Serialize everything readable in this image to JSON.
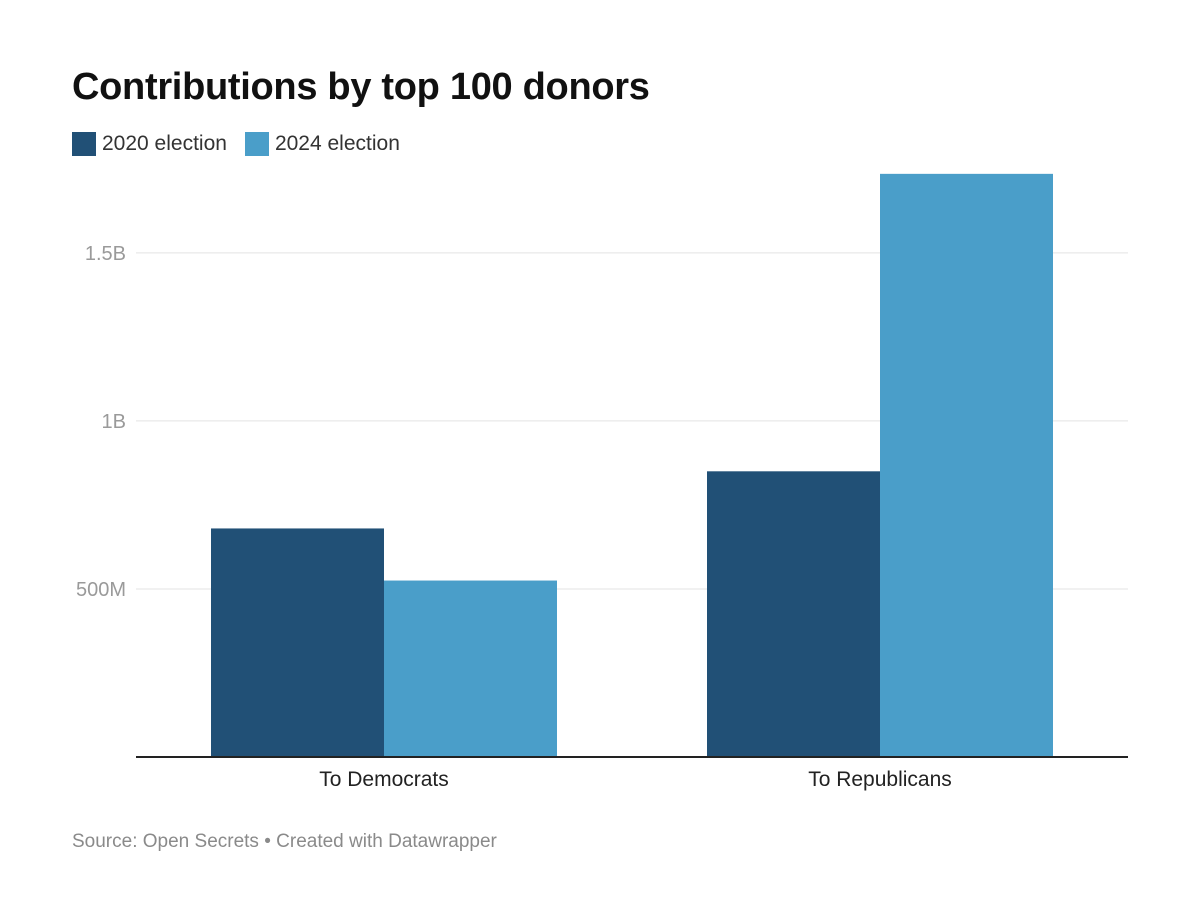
{
  "title": "Contributions by top 100 donors",
  "footer": {
    "source_text": "Source: Open Secrets",
    "separator": " • ",
    "credit_text": "Created with Datawrapper"
  },
  "chart_data": {
    "type": "bar",
    "title": "Contributions by top 100 donors",
    "categories": [
      "To Democrats",
      "To Republicans"
    ],
    "series": [
      {
        "name": "2020 election",
        "color": "#215076",
        "values": [
          680000000,
          850000000
        ]
      },
      {
        "name": "2024 election",
        "color": "#4a9ec9",
        "values": [
          525000000,
          1735000000
        ]
      }
    ],
    "y_ticks": [
      {
        "value": 500000000,
        "label": "500M"
      },
      {
        "value": 1000000000,
        "label": "1B"
      },
      {
        "value": 1500000000,
        "label": "1.5B"
      }
    ],
    "ylim": [
      0,
      1800000000
    ],
    "xlabel": "",
    "ylabel": "",
    "grid": true,
    "legend_position": "top-left"
  }
}
